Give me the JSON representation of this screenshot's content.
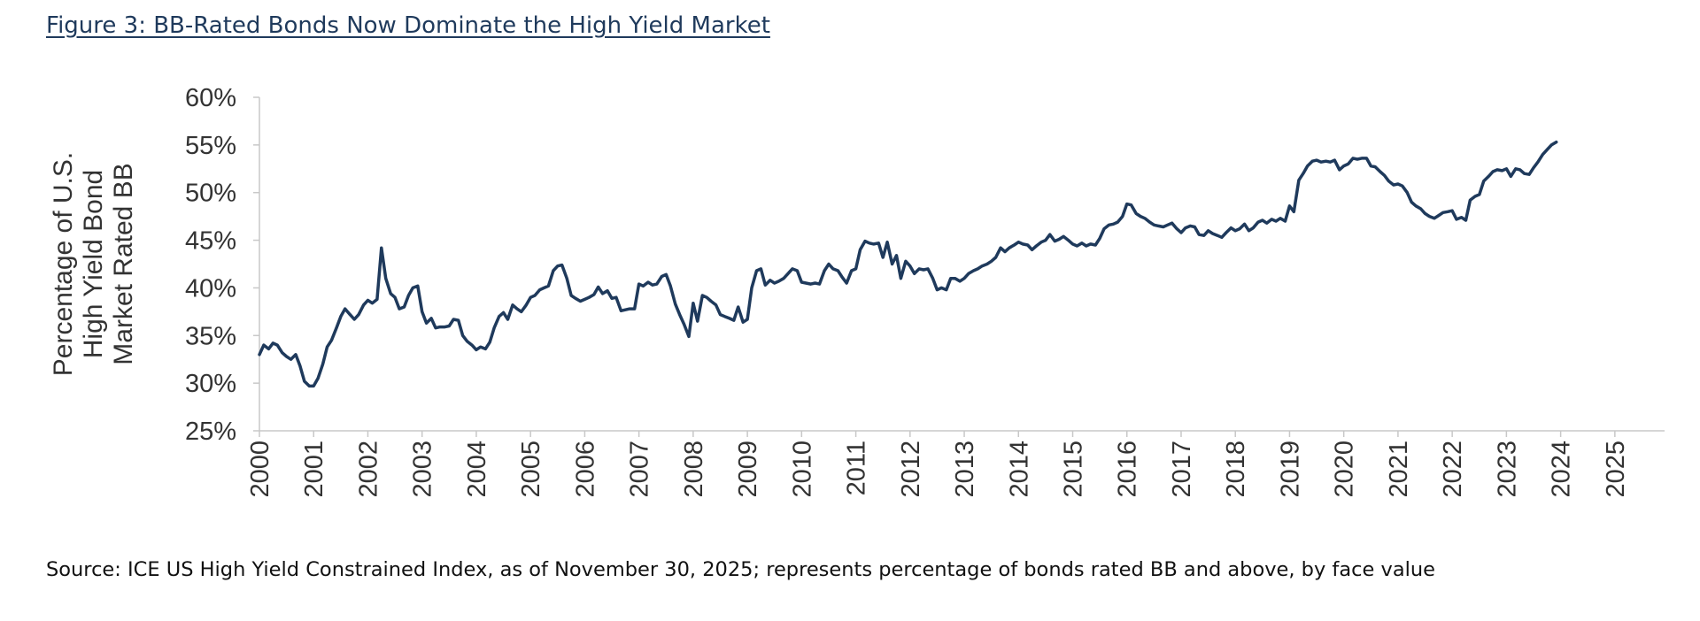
{
  "figure": {
    "title": "Figure 3: BB-Rated Bonds Now Dominate the High Yield Market",
    "source": "Source: ICE US High Yield Constrained Index, as of November 30, 2025; represents percentage of bonds rated BB and above, by face value"
  },
  "colors": {
    "line": "#1f3a5c",
    "axis": "#c8c8c8",
    "text": "#333333",
    "title": "#1f3a5c"
  },
  "chart_data": {
    "type": "line",
    "title": "Figure 3: BB-Rated Bonds Now Dominate the High Yield Market",
    "xlabel": "",
    "ylabel": "Percentage of U.S. High Yield Bond Market Rated BB",
    "ylabel_lines": [
      "Percentage of U.S.",
      "High Yield Bond",
      "Market Rated BB"
    ],
    "xlim": [
      2000,
      2025.917
    ],
    "ylim": [
      25,
      60
    ],
    "grid": false,
    "y_ticks": [
      25,
      30,
      35,
      40,
      45,
      50,
      55,
      60
    ],
    "y_tick_labels": [
      "25%",
      "30%",
      "35%",
      "40%",
      "45%",
      "50%",
      "55%",
      "60%"
    ],
    "x_ticks": [
      "2000",
      "2001",
      "2002",
      "2003",
      "2004",
      "2005",
      "2006",
      "2007",
      "2008",
      "2009",
      "2010",
      "2011",
      "2012",
      "2013",
      "2014",
      "2015",
      "2016",
      "2017",
      "2018",
      "2019",
      "2020",
      "2021",
      "2022",
      "2023",
      "2024",
      "2025"
    ],
    "series": [
      {
        "name": "",
        "points": [
          [
            2000.0,
            33.0
          ],
          [
            2000.08,
            34.0
          ],
          [
            2000.17,
            33.6
          ],
          [
            2000.25,
            34.2
          ],
          [
            2000.33,
            34.0
          ],
          [
            2000.42,
            33.2
          ],
          [
            2000.5,
            32.8
          ],
          [
            2000.58,
            32.5
          ],
          [
            2000.67,
            33.0
          ],
          [
            2000.75,
            31.8
          ],
          [
            2000.83,
            30.2
          ],
          [
            2000.92,
            29.7
          ],
          [
            2001.0,
            29.7
          ],
          [
            2001.08,
            30.5
          ],
          [
            2001.17,
            32.0
          ],
          [
            2001.25,
            33.8
          ],
          [
            2001.33,
            34.5
          ],
          [
            2001.42,
            35.8
          ],
          [
            2001.5,
            37.0
          ],
          [
            2001.58,
            37.8
          ],
          [
            2001.67,
            37.2
          ],
          [
            2001.75,
            36.7
          ],
          [
            2001.83,
            37.2
          ],
          [
            2001.92,
            38.2
          ],
          [
            2002.0,
            38.7
          ],
          [
            2002.08,
            38.4
          ],
          [
            2002.17,
            38.8
          ],
          [
            2002.25,
            44.2
          ],
          [
            2002.33,
            41.0
          ],
          [
            2002.42,
            39.4
          ],
          [
            2002.5,
            39.0
          ],
          [
            2002.58,
            37.8
          ],
          [
            2002.67,
            38.0
          ],
          [
            2002.75,
            39.2
          ],
          [
            2002.83,
            40.0
          ],
          [
            2002.92,
            40.2
          ],
          [
            2003.0,
            37.5
          ],
          [
            2003.08,
            36.3
          ],
          [
            2003.17,
            36.8
          ],
          [
            2003.25,
            35.8
          ],
          [
            2003.33,
            35.9
          ],
          [
            2003.42,
            35.9
          ],
          [
            2003.5,
            36.0
          ],
          [
            2003.58,
            36.7
          ],
          [
            2003.67,
            36.6
          ],
          [
            2003.75,
            35.0
          ],
          [
            2003.83,
            34.4
          ],
          [
            2003.92,
            34.0
          ],
          [
            2004.0,
            33.5
          ],
          [
            2004.08,
            33.8
          ],
          [
            2004.17,
            33.6
          ],
          [
            2004.25,
            34.3
          ],
          [
            2004.33,
            35.8
          ],
          [
            2004.42,
            37.0
          ],
          [
            2004.5,
            37.4
          ],
          [
            2004.58,
            36.7
          ],
          [
            2004.67,
            38.2
          ],
          [
            2004.75,
            37.8
          ],
          [
            2004.83,
            37.5
          ],
          [
            2004.92,
            38.2
          ],
          [
            2005.0,
            39.0
          ],
          [
            2005.08,
            39.2
          ],
          [
            2005.17,
            39.8
          ],
          [
            2005.25,
            40.0
          ],
          [
            2005.33,
            40.2
          ],
          [
            2005.42,
            41.8
          ],
          [
            2005.5,
            42.3
          ],
          [
            2005.58,
            42.4
          ],
          [
            2005.67,
            41.0
          ],
          [
            2005.75,
            39.2
          ],
          [
            2005.83,
            38.9
          ],
          [
            2005.92,
            38.6
          ],
          [
            2006.0,
            38.8
          ],
          [
            2006.08,
            39.0
          ],
          [
            2006.17,
            39.3
          ],
          [
            2006.25,
            40.1
          ],
          [
            2006.33,
            39.4
          ],
          [
            2006.42,
            39.7
          ],
          [
            2006.5,
            38.9
          ],
          [
            2006.58,
            39.0
          ],
          [
            2006.67,
            37.6
          ],
          [
            2006.75,
            37.7
          ],
          [
            2006.83,
            37.8
          ],
          [
            2006.92,
            37.8
          ],
          [
            2007.0,
            40.4
          ],
          [
            2007.08,
            40.2
          ],
          [
            2007.17,
            40.6
          ],
          [
            2007.25,
            40.3
          ],
          [
            2007.33,
            40.4
          ],
          [
            2007.42,
            41.2
          ],
          [
            2007.5,
            41.4
          ],
          [
            2007.58,
            40.2
          ],
          [
            2007.67,
            38.3
          ],
          [
            2007.75,
            37.2
          ],
          [
            2007.83,
            36.2
          ],
          [
            2007.92,
            34.9
          ],
          [
            2008.0,
            38.4
          ],
          [
            2008.08,
            36.5
          ],
          [
            2008.17,
            39.2
          ],
          [
            2008.25,
            39.0
          ],
          [
            2008.33,
            38.6
          ],
          [
            2008.42,
            38.2
          ],
          [
            2008.5,
            37.2
          ],
          [
            2008.58,
            37.0
          ],
          [
            2008.67,
            36.8
          ],
          [
            2008.75,
            36.6
          ],
          [
            2008.83,
            38.0
          ],
          [
            2008.92,
            36.4
          ],
          [
            2009.0,
            36.7
          ],
          [
            2009.08,
            40.0
          ],
          [
            2009.17,
            41.8
          ],
          [
            2009.25,
            42.0
          ],
          [
            2009.33,
            40.3
          ],
          [
            2009.42,
            40.8
          ],
          [
            2009.5,
            40.5
          ],
          [
            2009.58,
            40.7
          ],
          [
            2009.67,
            41.0
          ],
          [
            2009.75,
            41.5
          ],
          [
            2009.83,
            42.0
          ],
          [
            2009.92,
            41.8
          ],
          [
            2010.0,
            40.6
          ],
          [
            2010.08,
            40.5
          ],
          [
            2010.17,
            40.4
          ],
          [
            2010.25,
            40.5
          ],
          [
            2010.33,
            40.4
          ],
          [
            2010.42,
            41.8
          ],
          [
            2010.5,
            42.5
          ],
          [
            2010.58,
            42.0
          ],
          [
            2010.67,
            41.8
          ],
          [
            2010.75,
            41.1
          ],
          [
            2010.83,
            40.5
          ],
          [
            2010.92,
            41.8
          ],
          [
            2011.0,
            42.0
          ],
          [
            2011.08,
            44.0
          ],
          [
            2011.17,
            44.9
          ],
          [
            2011.25,
            44.7
          ],
          [
            2011.33,
            44.6
          ],
          [
            2011.42,
            44.7
          ],
          [
            2011.5,
            43.2
          ],
          [
            2011.58,
            44.8
          ],
          [
            2011.67,
            42.5
          ],
          [
            2011.75,
            43.4
          ],
          [
            2011.83,
            41.0
          ],
          [
            2011.92,
            42.8
          ],
          [
            2012.0,
            42.3
          ],
          [
            2012.08,
            41.5
          ],
          [
            2012.17,
            42.0
          ],
          [
            2012.25,
            41.9
          ],
          [
            2012.33,
            42.0
          ],
          [
            2012.42,
            41.0
          ],
          [
            2012.5,
            39.8
          ],
          [
            2012.58,
            40.0
          ],
          [
            2012.67,
            39.8
          ],
          [
            2012.75,
            41.0
          ],
          [
            2012.83,
            41.0
          ],
          [
            2012.92,
            40.7
          ],
          [
            2013.0,
            41.0
          ],
          [
            2013.08,
            41.5
          ],
          [
            2013.17,
            41.8
          ],
          [
            2013.25,
            42.0
          ],
          [
            2013.33,
            42.3
          ],
          [
            2013.42,
            42.5
          ],
          [
            2013.5,
            42.8
          ],
          [
            2013.58,
            43.2
          ],
          [
            2013.67,
            44.2
          ],
          [
            2013.75,
            43.8
          ],
          [
            2013.83,
            44.2
          ],
          [
            2013.92,
            44.5
          ],
          [
            2014.0,
            44.8
          ],
          [
            2014.08,
            44.6
          ],
          [
            2014.17,
            44.5
          ],
          [
            2014.25,
            44.0
          ],
          [
            2014.33,
            44.4
          ],
          [
            2014.42,
            44.8
          ],
          [
            2014.5,
            45.0
          ],
          [
            2014.58,
            45.6
          ],
          [
            2014.67,
            44.9
          ],
          [
            2014.75,
            45.1
          ],
          [
            2014.83,
            45.4
          ],
          [
            2014.92,
            45.0
          ],
          [
            2015.0,
            44.6
          ],
          [
            2015.08,
            44.4
          ],
          [
            2015.17,
            44.7
          ],
          [
            2015.25,
            44.4
          ],
          [
            2015.33,
            44.6
          ],
          [
            2015.42,
            44.5
          ],
          [
            2015.5,
            45.2
          ],
          [
            2015.58,
            46.2
          ],
          [
            2015.67,
            46.6
          ],
          [
            2015.75,
            46.7
          ],
          [
            2015.83,
            46.9
          ],
          [
            2015.92,
            47.5
          ],
          [
            2016.0,
            48.8
          ],
          [
            2016.08,
            48.7
          ],
          [
            2016.17,
            47.8
          ],
          [
            2016.25,
            47.5
          ],
          [
            2016.33,
            47.3
          ],
          [
            2016.42,
            46.9
          ],
          [
            2016.5,
            46.6
          ],
          [
            2016.58,
            46.5
          ],
          [
            2016.67,
            46.4
          ],
          [
            2016.75,
            46.6
          ],
          [
            2016.83,
            46.8
          ],
          [
            2016.92,
            46.2
          ],
          [
            2017.0,
            45.8
          ],
          [
            2017.08,
            46.3
          ],
          [
            2017.17,
            46.5
          ],
          [
            2017.25,
            46.4
          ],
          [
            2017.33,
            45.6
          ],
          [
            2017.42,
            45.5
          ],
          [
            2017.5,
            46.0
          ],
          [
            2017.58,
            45.7
          ],
          [
            2017.67,
            45.5
          ],
          [
            2017.75,
            45.3
          ],
          [
            2017.83,
            45.8
          ],
          [
            2017.92,
            46.3
          ],
          [
            2018.0,
            46.0
          ],
          [
            2018.08,
            46.2
          ],
          [
            2018.17,
            46.7
          ],
          [
            2018.25,
            46.0
          ],
          [
            2018.33,
            46.3
          ],
          [
            2018.42,
            46.9
          ],
          [
            2018.5,
            47.1
          ],
          [
            2018.58,
            46.8
          ],
          [
            2018.67,
            47.2
          ],
          [
            2018.75,
            47.0
          ],
          [
            2018.83,
            47.3
          ],
          [
            2018.92,
            47.0
          ],
          [
            2019.0,
            48.6
          ],
          [
            2019.08,
            48.0
          ],
          [
            2019.17,
            51.3
          ],
          [
            2019.25,
            52.0
          ],
          [
            2019.33,
            52.8
          ],
          [
            2019.42,
            53.3
          ],
          [
            2019.5,
            53.4
          ],
          [
            2019.58,
            53.2
          ],
          [
            2019.67,
            53.3
          ],
          [
            2019.75,
            53.2
          ],
          [
            2019.83,
            53.4
          ],
          [
            2019.92,
            52.4
          ],
          [
            2020.0,
            52.8
          ],
          [
            2020.08,
            53.0
          ],
          [
            2020.17,
            53.6
          ],
          [
            2020.25,
            53.5
          ],
          [
            2020.33,
            53.6
          ],
          [
            2020.42,
            53.6
          ],
          [
            2020.5,
            52.8
          ],
          [
            2020.58,
            52.7
          ],
          [
            2020.67,
            52.2
          ],
          [
            2020.75,
            51.8
          ],
          [
            2020.83,
            51.2
          ],
          [
            2020.92,
            50.8
          ],
          [
            2021.0,
            50.9
          ],
          [
            2021.08,
            50.7
          ],
          [
            2021.17,
            50.0
          ],
          [
            2021.25,
            49.0
          ],
          [
            2021.33,
            48.6
          ],
          [
            2021.42,
            48.3
          ],
          [
            2021.5,
            47.8
          ],
          [
            2021.58,
            47.5
          ],
          [
            2021.67,
            47.3
          ],
          [
            2021.75,
            47.6
          ],
          [
            2021.83,
            47.9
          ],
          [
            2021.92,
            48.0
          ],
          [
            2022.0,
            48.1
          ],
          [
            2022.08,
            47.2
          ],
          [
            2022.17,
            47.4
          ],
          [
            2022.25,
            47.1
          ],
          [
            2022.33,
            49.2
          ],
          [
            2022.42,
            49.6
          ],
          [
            2022.5,
            49.8
          ],
          [
            2022.58,
            51.2
          ],
          [
            2022.67,
            51.7
          ],
          [
            2022.75,
            52.2
          ],
          [
            2022.83,
            52.4
          ],
          [
            2022.92,
            52.3
          ],
          [
            2023.0,
            52.5
          ],
          [
            2023.08,
            51.7
          ],
          [
            2023.17,
            52.5
          ],
          [
            2023.25,
            52.4
          ],
          [
            2023.33,
            52.0
          ],
          [
            2023.42,
            51.9
          ],
          [
            2023.5,
            52.6
          ],
          [
            2023.58,
            53.2
          ],
          [
            2023.67,
            54.0
          ],
          [
            2023.75,
            54.5
          ],
          [
            2023.83,
            55.0
          ],
          [
            2023.92,
            55.3
          ]
        ]
      }
    ]
  }
}
